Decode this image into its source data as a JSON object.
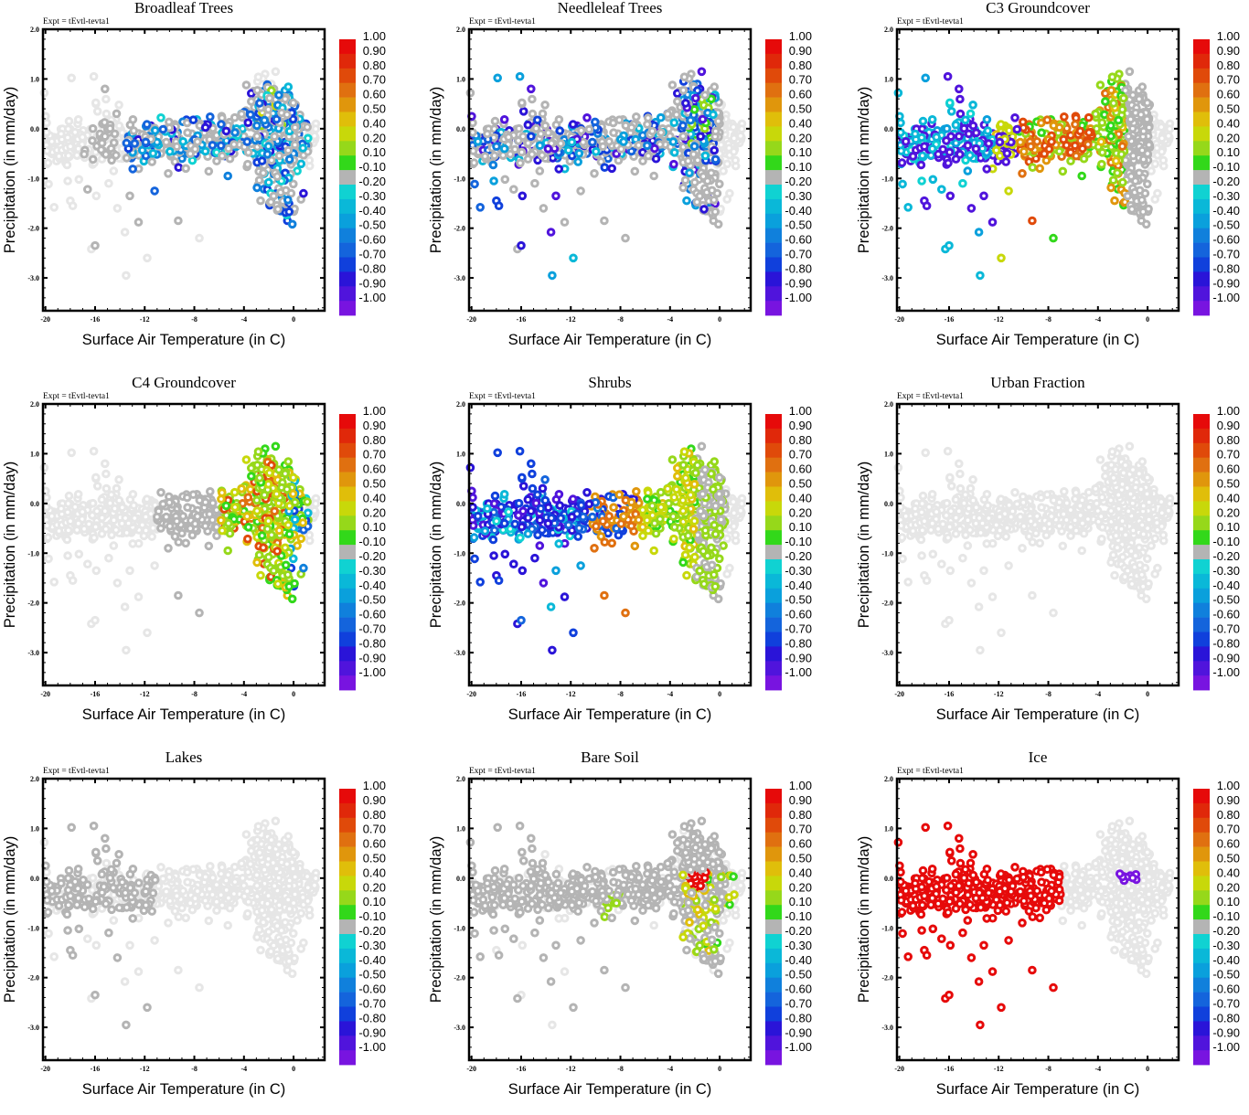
{
  "figure": {
    "experiment_label": "Expt = tEvtl-tevta1",
    "xlabel": "Surface Air Temperature (in C)",
    "ylabel": "Precipitation (in mm/day)"
  },
  "colorbar": {
    "labels": [
      "1.00",
      "0.90",
      "0.80",
      "0.70",
      "0.60",
      "0.50",
      "0.40",
      "0.20",
      "0.10",
      "-0.10",
      "-0.20",
      "-0.30",
      "-0.40",
      "-0.50",
      "-0.60",
      "-0.70",
      "-0.80",
      "-0.90",
      "-1.00"
    ],
    "colors": [
      "#e60a0a",
      "#e0280a",
      "#e04a0a",
      "#e07010",
      "#e0960c",
      "#e0be0a",
      "#c8d80a",
      "#96d81a",
      "#32d81a",
      "#b4b4b4",
      "#10d2d2",
      "#0ab8d8",
      "#0aa0dc",
      "#1080dc",
      "#1464dc",
      "#1040dc",
      "#2a14d8",
      "#5014dc",
      "#7814e0"
    ],
    "background_point_color": "#e6e6e6"
  },
  "chart_data": [
    {
      "type": "scatter",
      "title": "Broadleaf Trees",
      "xlabel": "Surface Air Temperature (in C)",
      "ylabel": "Precipitation (in mm/day)",
      "xlim": [
        -20.2,
        2.5
      ],
      "ylim": [
        -3.66,
        2.0
      ],
      "xticks": [
        -20,
        -16,
        -12,
        -8,
        -4,
        0
      ],
      "yticks": [
        2.0,
        1.0,
        0.0,
        -1.0,
        -2.0,
        -3.0
      ],
      "ytick_labels": [
        "2.0",
        "1.0",
        "0.0",
        "-1.0",
        "-2.0",
        "-3.0"
      ],
      "colorbar_range": [
        -1.0,
        1.0
      ],
      "highlight": {
        "region": "warm",
        "x_range": [
          -13,
          1
        ],
        "dominant_values": [
          -0.1,
          -0.3,
          -0.5,
          -0.7
        ],
        "notes": "negative correlations (cyan to blue) near -13 to 1 C; a few positive (0.2-0.5) near -3 to -1 C"
      }
    },
    {
      "type": "scatter",
      "title": "Needleleaf Trees",
      "xlabel": "Surface Air Temperature (in C)",
      "ylabel": "Precipitation (in mm/day)",
      "xlim": [
        -20.2,
        2.5
      ],
      "ylim": [
        -3.66,
        2.0
      ],
      "xticks": [
        -20,
        -16,
        -12,
        -8,
        -4,
        0
      ],
      "yticks": [
        2.0,
        1.0,
        0.0,
        -1.0,
        -2.0,
        -3.0
      ],
      "ytick_labels": [
        "2.0",
        "1.0",
        "0.0",
        "-1.0",
        "-2.0",
        "-3.0"
      ],
      "colorbar_range": [
        -1.0,
        1.0
      ],
      "highlight": {
        "region": "all",
        "x_range": [
          -20,
          0
        ],
        "dominant_values": [
          -0.3,
          -0.5,
          -0.7,
          -0.9
        ],
        "notes": "negative correlations across cold range; small positive (0.1-0.3) cluster near -2 to -1 C"
      }
    },
    {
      "type": "scatter",
      "title": "C3 Groundcover",
      "xlabel": "Surface Air Temperature (in C)",
      "ylabel": "Precipitation (in mm/day)",
      "xlim": [
        -20.2,
        2.5
      ],
      "ylim": [
        -3.66,
        2.0
      ],
      "xticks": [
        -20,
        -16,
        -12,
        -8,
        -4,
        0
      ],
      "yticks": [
        2.0,
        1.0,
        0.0,
        -1.0,
        -2.0,
        -3.0
      ],
      "ytick_labels": [
        "2.0",
        "1.0",
        "0.0",
        "-1.0",
        "-2.0",
        "-3.0"
      ],
      "colorbar_range": [
        -1.0,
        1.0
      ],
      "highlight": {
        "region": "all",
        "x_range": [
          -20,
          -1
        ],
        "dominant_values": [
          -0.2,
          -0.9,
          0.7,
          0.5,
          0.1
        ],
        "notes": "cyan/purple below -12 C; orange-red -11 to -4 C; green -4 to -2 C"
      }
    },
    {
      "type": "scatter",
      "title": "C4 Groundcover",
      "xlabel": "Surface Air Temperature (in C)",
      "ylabel": "Precipitation (in mm/day)",
      "xlim": [
        -20.2,
        2.5
      ],
      "ylim": [
        -3.66,
        2.0
      ],
      "xticks": [
        -20,
        -16,
        -12,
        -8,
        -4,
        0
      ],
      "yticks": [
        2.0,
        1.0,
        0.0,
        -1.0,
        -2.0,
        -3.0
      ],
      "ytick_labels": [
        "2.0",
        "1.0",
        "0.0",
        "-1.0",
        "-2.0",
        "-3.0"
      ],
      "colorbar_range": [
        -1.0,
        1.0
      ],
      "highlight": {
        "region": "warm",
        "x_range": [
          -6,
          1
        ],
        "dominant_values": [
          0.1,
          0.2,
          0.5,
          0.8
        ],
        "notes": "positive correlations concentrated -6 to 1 C; some blue near 0 C"
      }
    },
    {
      "type": "scatter",
      "title": "Shrubs",
      "xlabel": "Surface Air Temperature (in C)",
      "ylabel": "Precipitation (in mm/day)",
      "xlim": [
        -20.2,
        2.5
      ],
      "ylim": [
        -3.66,
        2.0
      ],
      "xticks": [
        -20,
        -16,
        -12,
        -8,
        -4,
        0
      ],
      "yticks": [
        2.0,
        1.0,
        0.0,
        -1.0,
        -2.0,
        -3.0
      ],
      "ytick_labels": [
        "2.0",
        "1.0",
        "0.0",
        "-1.0",
        "-2.0",
        "-3.0"
      ],
      "colorbar_range": [
        -1.0,
        1.0
      ],
      "highlight": {
        "region": "all",
        "x_range": [
          -20,
          0
        ],
        "dominant_values": [
          -0.7,
          -0.8,
          0.6,
          0.4,
          0.1
        ],
        "notes": "blue/purple below -10 C; orange -10 to -6 C; yellow-green -6 to 0 C"
      }
    },
    {
      "type": "scatter",
      "title": "Urban Fraction",
      "xlabel": "Surface Air Temperature (in C)",
      "ylabel": "Precipitation (in mm/day)",
      "xlim": [
        -20.2,
        2.5
      ],
      "ylim": [
        -3.66,
        2.0
      ],
      "xticks": [
        -20,
        -16,
        -12,
        -8,
        -4,
        0
      ],
      "yticks": [
        2.0,
        1.0,
        0.0,
        -1.0,
        -2.0,
        -3.0
      ],
      "ytick_labels": [
        "2.0",
        "1.0",
        "0.0",
        "-1.0",
        "-2.0",
        "-3.0"
      ],
      "colorbar_range": [
        -1.0,
        1.0
      ],
      "highlight": {
        "region": "none",
        "x_range": [],
        "dominant_values": [],
        "notes": "all points background light gray"
      }
    },
    {
      "type": "scatter",
      "title": "Lakes",
      "xlabel": "Surface Air Temperature (in C)",
      "ylabel": "Precipitation (in mm/day)",
      "xlim": [
        -20.2,
        2.5
      ],
      "ylim": [
        -3.66,
        2.0
      ],
      "xticks": [
        -20,
        -16,
        -12,
        -8,
        -4,
        0
      ],
      "yticks": [
        2.0,
        1.0,
        0.0,
        -1.0,
        -2.0,
        -3.0
      ],
      "ytick_labels": [
        "2.0",
        "1.0",
        "0.0",
        "-1.0",
        "-2.0",
        "-3.0"
      ],
      "colorbar_range": [
        -1.0,
        1.0
      ],
      "highlight": {
        "region": "cold",
        "x_range": [
          -20,
          -11
        ],
        "dominant_values": [
          -0.1
        ],
        "notes": "darker gray (-0.1 to 0.1) cluster -20 to -11 C; two tiny cyan near -16 C"
      }
    },
    {
      "type": "scatter",
      "title": "Bare Soil",
      "xlabel": "Surface Air Temperature (in C)",
      "ylabel": "Precipitation (in mm/day)",
      "xlim": [
        -20.2,
        2.5
      ],
      "ylim": [
        -3.66,
        2.0
      ],
      "xticks": [
        -20,
        -16,
        -12,
        -8,
        -4,
        0
      ],
      "yticks": [
        2.0,
        1.0,
        0.0,
        -1.0,
        -2.0,
        -3.0
      ],
      "ytick_labels": [
        "2.0",
        "1.0",
        "0.0",
        "-1.0",
        "-2.0",
        "-3.0"
      ],
      "colorbar_range": [
        -1.0,
        1.0
      ],
      "highlight": {
        "region": "warm",
        "x_range": [
          -10,
          1
        ],
        "dominant_values": [
          -0.1,
          0.1,
          0.2,
          0.9
        ],
        "notes": "mostly gray; green -10 to 0 C; red cluster near -2 C at 0.0 mm/day"
      }
    },
    {
      "type": "scatter",
      "title": "Ice",
      "xlabel": "Surface Air Temperature (in C)",
      "ylabel": "Precipitation (in mm/day)",
      "xlim": [
        -20.2,
        2.5
      ],
      "ylim": [
        -3.66,
        2.0
      ],
      "xticks": [
        -20,
        -16,
        -12,
        -8,
        -4,
        0
      ],
      "yticks": [
        2.0,
        1.0,
        0.0,
        -1.0,
        -2.0,
        -3.0
      ],
      "ytick_labels": [
        "2.0",
        "1.0",
        "0.0",
        "-1.0",
        "-2.0",
        "-3.0"
      ],
      "colorbar_range": [
        -1.0,
        1.0
      ],
      "highlight": {
        "region": "cold",
        "x_range": [
          -20,
          -7
        ],
        "dominant_values": [
          1.0,
          -1.0
        ],
        "notes": "red (~1.0) for points colder than -7 C; purple (~-1.0) cluster near -2 to -1 C at 0.0 mm/day"
      }
    }
  ],
  "points": {
    "description": "shared scatter cloud (temperature C, precipitation mm/day)",
    "xy": [
      [
        -20.1,
        0.72
      ],
      [
        -19.5,
        -0.5
      ],
      [
        -19.3,
        -1.58
      ],
      [
        -19.1,
        -0.65
      ],
      [
        -18.5,
        -0.25
      ],
      [
        -18.2,
        -1.05
      ],
      [
        -18.0,
        -1.45
      ],
      [
        -17.9,
        1.02
      ],
      [
        -17.8,
        -1.55
      ],
      [
        -17.6,
        -0.4
      ],
      [
        -17.3,
        -1.02
      ],
      [
        -17.0,
        -0.25
      ],
      [
        -16.7,
        -0.55
      ],
      [
        -16.6,
        -1.22
      ],
      [
        -16.3,
        -2.42
      ],
      [
        -16.2,
        -0.72
      ],
      [
        -16.1,
        1.05
      ],
      [
        -16.0,
        -2.35
      ],
      [
        -15.9,
        -1.35
      ],
      [
        -15.8,
        0.35
      ],
      [
        -15.6,
        -0.15
      ],
      [
        -15.4,
        0.1
      ],
      [
        -15.2,
        0.8
      ],
      [
        -15.0,
        -0.45
      ],
      [
        -14.9,
        -1.1
      ],
      [
        -14.7,
        -0.4
      ],
      [
        -14.5,
        -0.85
      ],
      [
        -14.2,
        -1.6
      ],
      [
        -14.0,
        -0.3
      ],
      [
        -13.8,
        -0.6
      ],
      [
        -13.6,
        -2.08
      ],
      [
        -13.5,
        -2.95
      ],
      [
        -13.2,
        -1.35
      ],
      [
        -13.0,
        -0.3
      ],
      [
        -12.7,
        -0.52
      ],
      [
        -12.5,
        -1.88
      ],
      [
        -12.3,
        -0.5
      ],
      [
        -12.0,
        -0.28
      ],
      [
        -11.8,
        -2.6
      ],
      [
        -11.5,
        -0.45
      ],
      [
        -11.2,
        -1.25
      ],
      [
        -11.0,
        -0.15
      ],
      [
        -10.7,
        -0.5
      ],
      [
        -10.4,
        -0.3
      ],
      [
        -10.1,
        -0.9
      ],
      [
        -9.9,
        -0.55
      ],
      [
        -9.6,
        -0.4
      ],
      [
        -9.3,
        -1.85
      ],
      [
        -9.2,
        -0.2
      ],
      [
        -9.0,
        -0.6
      ],
      [
        -8.7,
        -0.35
      ],
      [
        -8.5,
        -0.5
      ],
      [
        -8.2,
        -0.1
      ],
      [
        -8.0,
        -0.3
      ],
      [
        -7.8,
        -0.55
      ],
      [
        -7.6,
        -2.2
      ],
      [
        -7.4,
        -0.25
      ],
      [
        -7.2,
        -0.05
      ],
      [
        -7.0,
        -0.4
      ],
      [
        -6.8,
        -0.2
      ],
      [
        -6.6,
        0.05
      ],
      [
        -6.4,
        -0.3
      ],
      [
        -6.2,
        -0.65
      ],
      [
        -6.0,
        -0.15
      ],
      [
        -5.8,
        0.25
      ],
      [
        -5.6,
        -0.35
      ],
      [
        -5.4,
        -0.05
      ],
      [
        -5.3,
        -0.95
      ],
      [
        -5.2,
        0.1
      ],
      [
        -5.0,
        -0.25
      ],
      [
        -4.8,
        -0.5
      ],
      [
        -4.6,
        0.0
      ],
      [
        -4.4,
        -0.2
      ],
      [
        -4.2,
        0.3
      ],
      [
        -4.0,
        -0.15
      ],
      [
        -3.8,
        -0.45
      ],
      [
        -3.6,
        0.05
      ],
      [
        -3.4,
        -0.3
      ],
      [
        -3.2,
        0.55
      ],
      [
        -3.0,
        0.2
      ],
      [
        -2.9,
        0.95
      ],
      [
        -2.8,
        -0.1
      ],
      [
        -2.6,
        0.4
      ],
      [
        -2.5,
        0.75
      ],
      [
        -2.4,
        -0.35
      ],
      [
        -2.3,
        1.1
      ],
      [
        -2.2,
        0.15
      ],
      [
        -2.0,
        0.6
      ],
      [
        -1.9,
        -0.5
      ],
      [
        -1.8,
        0.9
      ],
      [
        -1.7,
        -0.2
      ],
      [
        -1.6,
        0.3
      ],
      [
        -1.5,
        -0.7
      ],
      [
        -1.4,
        0.05
      ],
      [
        -1.3,
        -0.9
      ],
      [
        -1.2,
        -1.2
      ],
      [
        -1.1,
        0.45
      ],
      [
        -1.0,
        -0.4
      ],
      [
        -0.9,
        -1.4
      ],
      [
        -0.8,
        -0.1
      ],
      [
        -0.6,
        -0.95
      ],
      [
        -0.5,
        -1.85
      ],
      [
        -0.4,
        0.65
      ],
      [
        -0.3,
        -0.6
      ],
      [
        -0.2,
        -1.3
      ],
      [
        -0.1,
        -1.92
      ],
      [
        0.1,
        -0.3
      ],
      [
        0.3,
        -0.85
      ],
      [
        0.5,
        -0.5
      ],
      [
        0.6,
        -1.42
      ],
      [
        0.8,
        -1.3
      ],
      [
        1.0,
        0.1
      ],
      [
        1.3,
        -0.75
      ],
      [
        1.8,
        0.1
      ]
    ]
  }
}
